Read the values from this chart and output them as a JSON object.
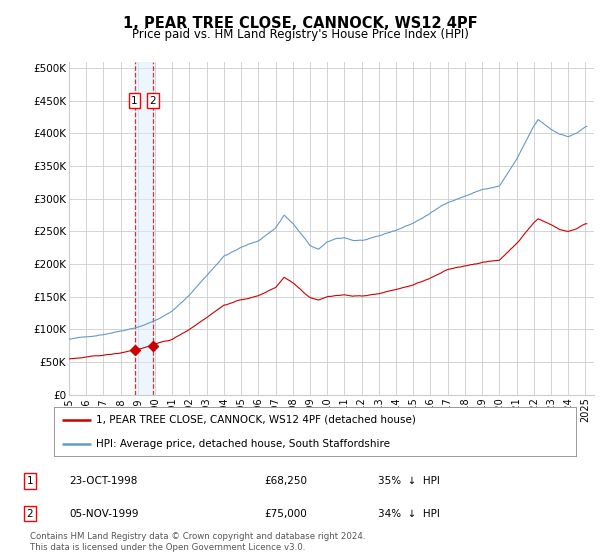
{
  "title": "1, PEAR TREE CLOSE, CANNOCK, WS12 4PF",
  "subtitle": "Price paid vs. HM Land Registry's House Price Index (HPI)",
  "yticks": [
    0,
    50000,
    100000,
    150000,
    200000,
    250000,
    300000,
    350000,
    400000,
    450000,
    500000
  ],
  "ytick_labels": [
    "£0",
    "£50K",
    "£100K",
    "£150K",
    "£200K",
    "£250K",
    "£300K",
    "£350K",
    "£400K",
    "£450K",
    "£500K"
  ],
  "xlim_start": 1995.0,
  "xlim_end": 2025.5,
  "ylim_min": 0,
  "ylim_max": 510000,
  "transactions": [
    {
      "label": "1",
      "date_str": "23-OCT-1998",
      "price": 68250,
      "x": 1998.81,
      "pct": "35%",
      "dir": "↓"
    },
    {
      "label": "2",
      "date_str": "05-NOV-1999",
      "price": 75000,
      "x": 1999.87,
      "pct": "34%",
      "dir": "↓"
    }
  ],
  "legend_property": "1, PEAR TREE CLOSE, CANNOCK, WS12 4PF (detached house)",
  "legend_hpi": "HPI: Average price, detached house, South Staffordshire",
  "footnote": "Contains HM Land Registry data © Crown copyright and database right 2024.\nThis data is licensed under the Open Government Licence v3.0.",
  "red_color": "#cc0000",
  "blue_color": "#6699cc",
  "blue_fill": "#ddeeff",
  "grid_color": "#cccccc",
  "bg_color": "#ffffff",
  "xtick_years": [
    1995,
    1996,
    1997,
    1998,
    1999,
    2000,
    2001,
    2002,
    2003,
    2004,
    2005,
    2006,
    2007,
    2008,
    2009,
    2010,
    2011,
    2012,
    2013,
    2014,
    2015,
    2016,
    2017,
    2018,
    2019,
    2020,
    2021,
    2022,
    2023,
    2024,
    2025
  ]
}
